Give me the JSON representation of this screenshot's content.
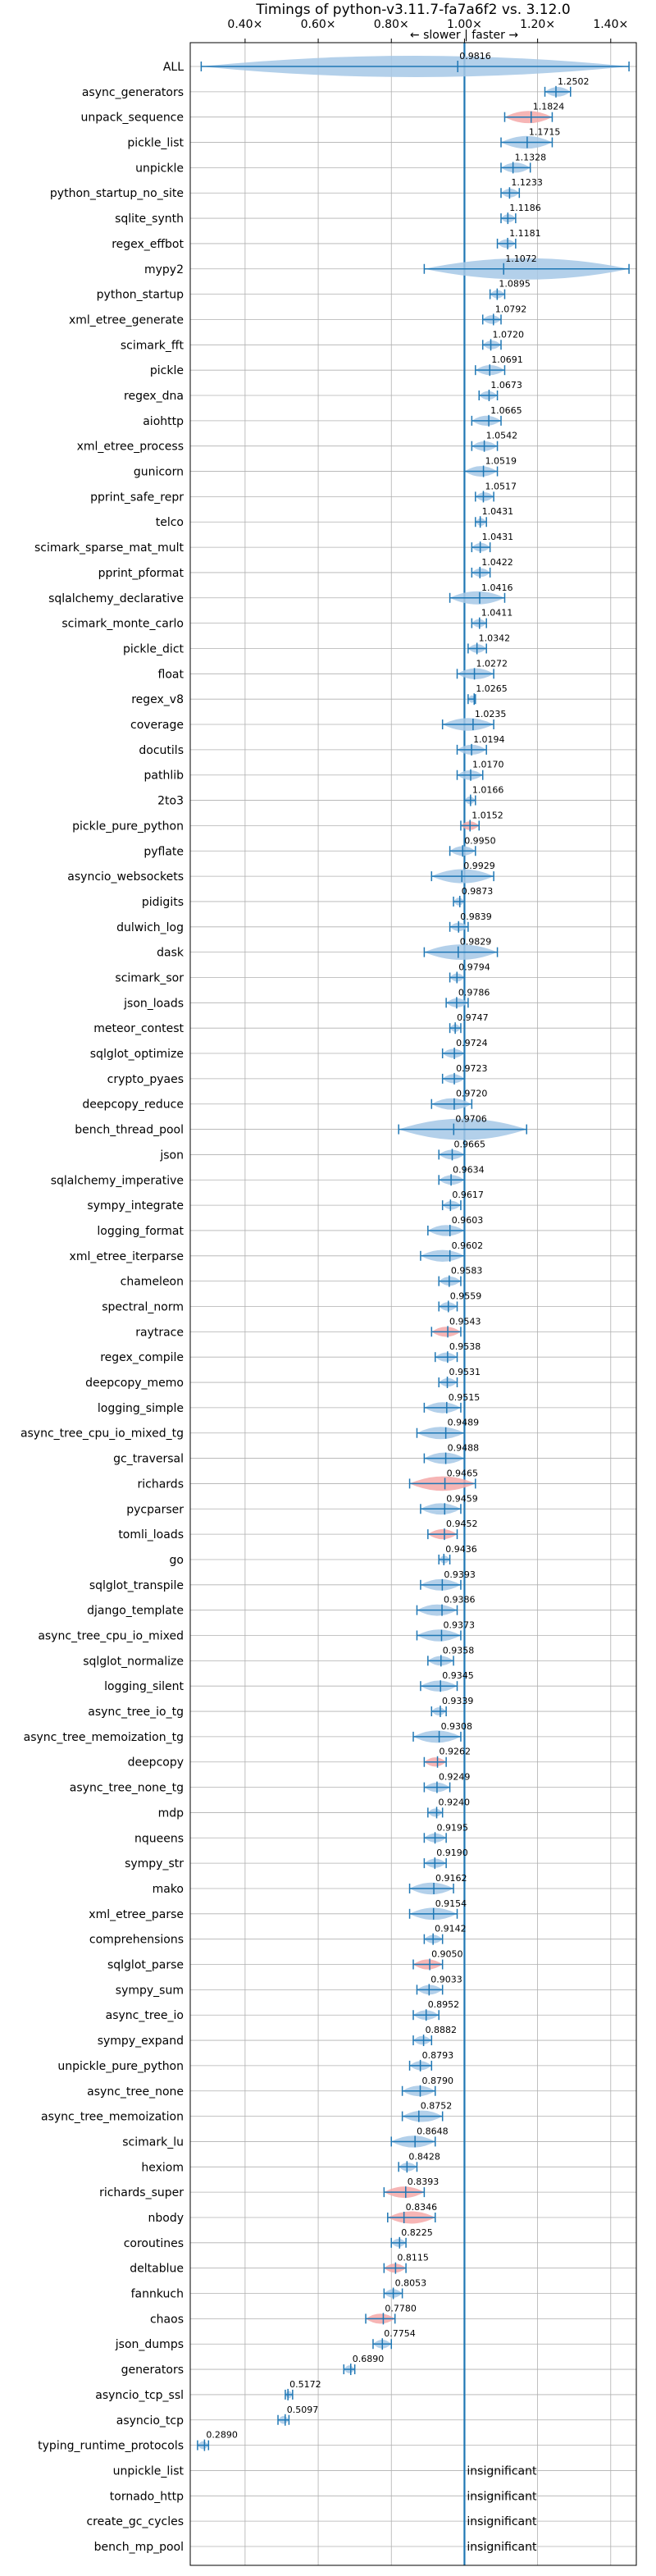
{
  "chart_data": {
    "type": "violin",
    "title": "Timings of python-v3.11.7-fa7a6f2 vs. 3.12.0",
    "subtitle": "← slower | faster →",
    "xlim": [
      0.25,
      1.47
    ],
    "x_ticks": [
      0.4,
      0.6,
      0.8,
      1.0,
      1.2,
      1.4
    ],
    "x_tick_labels": [
      "0.40×",
      "0.60×",
      "0.80×",
      "1.00×",
      "1.20×",
      "1.40×"
    ],
    "grid": true,
    "reference_line": 1.0,
    "colors": {
      "faster": "#a6c8e6",
      "slower": "#f4a8a8",
      "line": "#1f77b4"
    },
    "benchmarks": [
      {
        "name": "ALL",
        "value": 0.9816,
        "label": "0.9816",
        "min": 0.28,
        "max": 1.45
      },
      {
        "name": "async_generators",
        "value": 1.2502,
        "label": "1.2502",
        "min": 1.22,
        "max": 1.29
      },
      {
        "name": "unpack_sequence",
        "value": 1.1824,
        "label": "1.1824",
        "min": 1.11,
        "max": 1.24,
        "slower": true
      },
      {
        "name": "pickle_list",
        "value": 1.1715,
        "label": "1.1715",
        "min": 1.1,
        "max": 1.24
      },
      {
        "name": "unpickle",
        "value": 1.1328,
        "label": "1.1328",
        "min": 1.1,
        "max": 1.18
      },
      {
        "name": "python_startup_no_site",
        "value": 1.1233,
        "label": "1.1233",
        "min": 1.1,
        "max": 1.15
      },
      {
        "name": "sqlite_synth",
        "value": 1.1186,
        "label": "1.1186",
        "min": 1.1,
        "max": 1.14
      },
      {
        "name": "regex_effbot",
        "value": 1.1181,
        "label": "1.1181",
        "min": 1.09,
        "max": 1.14
      },
      {
        "name": "mypy2",
        "value": 1.1072,
        "label": "1.1072",
        "min": 0.89,
        "max": 1.45
      },
      {
        "name": "python_startup",
        "value": 1.0895,
        "label": "1.0895",
        "min": 1.07,
        "max": 1.11
      },
      {
        "name": "xml_etree_generate",
        "value": 1.0792,
        "label": "1.0792",
        "min": 1.05,
        "max": 1.1
      },
      {
        "name": "scimark_fft",
        "value": 1.072,
        "label": "1.0720",
        "min": 1.05,
        "max": 1.1
      },
      {
        "name": "pickle",
        "value": 1.0691,
        "label": "1.0691",
        "min": 1.03,
        "max": 1.11
      },
      {
        "name": "regex_dna",
        "value": 1.0673,
        "label": "1.0673",
        "min": 1.04,
        "max": 1.09
      },
      {
        "name": "aiohttp",
        "value": 1.0665,
        "label": "1.0665",
        "min": 1.02,
        "max": 1.1
      },
      {
        "name": "xml_etree_process",
        "value": 1.0542,
        "label": "1.0542",
        "min": 1.02,
        "max": 1.09
      },
      {
        "name": "gunicorn",
        "value": 1.0519,
        "label": "1.0519",
        "min": 1.0,
        "max": 1.09
      },
      {
        "name": "pprint_safe_repr",
        "value": 1.0517,
        "label": "1.0517",
        "min": 1.03,
        "max": 1.08
      },
      {
        "name": "telco",
        "value": 1.0431,
        "label": "1.0431",
        "min": 1.03,
        "max": 1.06
      },
      {
        "name": "scimark_sparse_mat_mult",
        "value": 1.0431,
        "label": "1.0431",
        "min": 1.02,
        "max": 1.07
      },
      {
        "name": "pprint_pformat",
        "value": 1.0422,
        "label": "1.0422",
        "min": 1.02,
        "max": 1.07
      },
      {
        "name": "sqlalchemy_declarative",
        "value": 1.0416,
        "label": "1.0416",
        "min": 0.96,
        "max": 1.11
      },
      {
        "name": "scimark_monte_carlo",
        "value": 1.0411,
        "label": "1.0411",
        "min": 1.02,
        "max": 1.06
      },
      {
        "name": "pickle_dict",
        "value": 1.0342,
        "label": "1.0342",
        "min": 1.01,
        "max": 1.06
      },
      {
        "name": "float",
        "value": 1.0272,
        "label": "1.0272",
        "min": 0.98,
        "max": 1.08
      },
      {
        "name": "regex_v8",
        "value": 1.0265,
        "label": "1.0265",
        "min": 1.01,
        "max": 1.03
      },
      {
        "name": "coverage",
        "value": 1.0235,
        "label": "1.0235",
        "min": 0.94,
        "max": 1.08
      },
      {
        "name": "docutils",
        "value": 1.0194,
        "label": "1.0194",
        "min": 0.98,
        "max": 1.06
      },
      {
        "name": "pathlib",
        "value": 1.017,
        "label": "1.0170",
        "min": 0.98,
        "max": 1.05
      },
      {
        "name": "2to3",
        "value": 1.0166,
        "label": "1.0166",
        "min": 1.0,
        "max": 1.03
      },
      {
        "name": "pickle_pure_python",
        "value": 1.0152,
        "label": "1.0152",
        "min": 0.99,
        "max": 1.04,
        "slower": true
      },
      {
        "name": "pyflate",
        "value": 0.995,
        "label": "0.9950",
        "min": 0.96,
        "max": 1.03
      },
      {
        "name": "asyncio_websockets",
        "value": 0.9929,
        "label": "0.9929",
        "min": 0.91,
        "max": 1.08
      },
      {
        "name": "pidigits",
        "value": 0.9873,
        "label": "0.9873",
        "min": 0.97,
        "max": 1.0
      },
      {
        "name": "dulwich_log",
        "value": 0.9839,
        "label": "0.9839",
        "min": 0.96,
        "max": 1.01
      },
      {
        "name": "dask",
        "value": 0.9829,
        "label": "0.9829",
        "min": 0.89,
        "max": 1.09
      },
      {
        "name": "scimark_sor",
        "value": 0.9794,
        "label": "0.9794",
        "min": 0.96,
        "max": 1.0
      },
      {
        "name": "json_loads",
        "value": 0.9786,
        "label": "0.9786",
        "min": 0.95,
        "max": 1.01
      },
      {
        "name": "meteor_contest",
        "value": 0.9747,
        "label": "0.9747",
        "min": 0.96,
        "max": 0.99
      },
      {
        "name": "sqlglot_optimize",
        "value": 0.9724,
        "label": "0.9724",
        "min": 0.94,
        "max": 1.0
      },
      {
        "name": "crypto_pyaes",
        "value": 0.9723,
        "label": "0.9723",
        "min": 0.94,
        "max": 1.0
      },
      {
        "name": "deepcopy_reduce",
        "value": 0.972,
        "label": "0.9720",
        "min": 0.91,
        "max": 1.02
      },
      {
        "name": "bench_thread_pool",
        "value": 0.9706,
        "label": "0.9706",
        "min": 0.82,
        "max": 1.17
      },
      {
        "name": "json",
        "value": 0.9665,
        "label": "0.9665",
        "min": 0.93,
        "max": 1.0
      },
      {
        "name": "sqlalchemy_imperative",
        "value": 0.9634,
        "label": "0.9634",
        "min": 0.93,
        "max": 1.0
      },
      {
        "name": "sympy_integrate",
        "value": 0.9617,
        "label": "0.9617",
        "min": 0.94,
        "max": 0.99
      },
      {
        "name": "logging_format",
        "value": 0.9603,
        "label": "0.9603",
        "min": 0.9,
        "max": 1.0
      },
      {
        "name": "xml_etree_iterparse",
        "value": 0.9602,
        "label": "0.9602",
        "min": 0.88,
        "max": 1.0
      },
      {
        "name": "chameleon",
        "value": 0.9583,
        "label": "0.9583",
        "min": 0.93,
        "max": 0.99
      },
      {
        "name": "spectral_norm",
        "value": 0.9559,
        "label": "0.9559",
        "min": 0.93,
        "max": 0.98
      },
      {
        "name": "raytrace",
        "value": 0.9543,
        "label": "0.9543",
        "min": 0.91,
        "max": 0.99,
        "slower": true
      },
      {
        "name": "regex_compile",
        "value": 0.9538,
        "label": "0.9538",
        "min": 0.92,
        "max": 0.98
      },
      {
        "name": "deepcopy_memo",
        "value": 0.9531,
        "label": "0.9531",
        "min": 0.93,
        "max": 0.98
      },
      {
        "name": "logging_simple",
        "value": 0.9515,
        "label": "0.9515",
        "min": 0.89,
        "max": 0.99
      },
      {
        "name": "async_tree_cpu_io_mixed_tg",
        "value": 0.9489,
        "label": "0.9489",
        "min": 0.87,
        "max": 1.0
      },
      {
        "name": "gc_traversal",
        "value": 0.9488,
        "label": "0.9488",
        "min": 0.89,
        "max": 1.0
      },
      {
        "name": "richards",
        "value": 0.9465,
        "label": "0.9465",
        "min": 0.85,
        "max": 1.03,
        "slower": true
      },
      {
        "name": "pycparser",
        "value": 0.9459,
        "label": "0.9459",
        "min": 0.88,
        "max": 0.99
      },
      {
        "name": "tomli_loads",
        "value": 0.9452,
        "label": "0.9452",
        "min": 0.9,
        "max": 0.98,
        "slower": true
      },
      {
        "name": "go",
        "value": 0.9436,
        "label": "0.9436",
        "min": 0.93,
        "max": 0.96
      },
      {
        "name": "sqlglot_transpile",
        "value": 0.9393,
        "label": "0.9393",
        "min": 0.88,
        "max": 0.99
      },
      {
        "name": "django_template",
        "value": 0.9386,
        "label": "0.9386",
        "min": 0.87,
        "max": 0.98
      },
      {
        "name": "async_tree_cpu_io_mixed",
        "value": 0.9373,
        "label": "0.9373",
        "min": 0.87,
        "max": 0.99
      },
      {
        "name": "sqlglot_normalize",
        "value": 0.9358,
        "label": "0.9358",
        "min": 0.9,
        "max": 0.97
      },
      {
        "name": "logging_silent",
        "value": 0.9345,
        "label": "0.9345",
        "min": 0.88,
        "max": 0.98
      },
      {
        "name": "async_tree_io_tg",
        "value": 0.9339,
        "label": "0.9339",
        "min": 0.91,
        "max": 0.95
      },
      {
        "name": "async_tree_memoization_tg",
        "value": 0.9308,
        "label": "0.9308",
        "min": 0.86,
        "max": 0.99
      },
      {
        "name": "deepcopy",
        "value": 0.9262,
        "label": "0.9262",
        "min": 0.89,
        "max": 0.95,
        "slower": true
      },
      {
        "name": "async_tree_none_tg",
        "value": 0.9249,
        "label": "0.9249",
        "min": 0.89,
        "max": 0.96
      },
      {
        "name": "mdp",
        "value": 0.924,
        "label": "0.9240",
        "min": 0.9,
        "max": 0.94
      },
      {
        "name": "nqueens",
        "value": 0.9195,
        "label": "0.9195",
        "min": 0.89,
        "max": 0.95
      },
      {
        "name": "sympy_str",
        "value": 0.919,
        "label": "0.9190",
        "min": 0.89,
        "max": 0.95
      },
      {
        "name": "mako",
        "value": 0.9162,
        "label": "0.9162",
        "min": 0.85,
        "max": 0.97
      },
      {
        "name": "xml_etree_parse",
        "value": 0.9154,
        "label": "0.9154",
        "min": 0.85,
        "max": 0.98
      },
      {
        "name": "comprehensions",
        "value": 0.9142,
        "label": "0.9142",
        "min": 0.89,
        "max": 0.94
      },
      {
        "name": "sqlglot_parse",
        "value": 0.905,
        "label": "0.9050",
        "min": 0.86,
        "max": 0.94,
        "slower": true
      },
      {
        "name": "sympy_sum",
        "value": 0.9033,
        "label": "0.9033",
        "min": 0.87,
        "max": 0.94
      },
      {
        "name": "async_tree_io",
        "value": 0.8952,
        "label": "0.8952",
        "min": 0.86,
        "max": 0.93
      },
      {
        "name": "sympy_expand",
        "value": 0.8882,
        "label": "0.8882",
        "min": 0.86,
        "max": 0.91
      },
      {
        "name": "unpickle_pure_python",
        "value": 0.8793,
        "label": "0.8793",
        "min": 0.85,
        "max": 0.91
      },
      {
        "name": "async_tree_none",
        "value": 0.879,
        "label": "0.8790",
        "min": 0.83,
        "max": 0.92
      },
      {
        "name": "async_tree_memoization",
        "value": 0.8752,
        "label": "0.8752",
        "min": 0.83,
        "max": 0.94
      },
      {
        "name": "scimark_lu",
        "value": 0.8648,
        "label": "0.8648",
        "min": 0.8,
        "max": 0.92
      },
      {
        "name": "hexiom",
        "value": 0.8428,
        "label": "0.8428",
        "min": 0.82,
        "max": 0.87
      },
      {
        "name": "richards_super",
        "value": 0.8393,
        "label": "0.8393",
        "min": 0.78,
        "max": 0.89,
        "slower": true
      },
      {
        "name": "nbody",
        "value": 0.8346,
        "label": "0.8346",
        "min": 0.79,
        "max": 0.92,
        "slower": true
      },
      {
        "name": "coroutines",
        "value": 0.8225,
        "label": "0.8225",
        "min": 0.8,
        "max": 0.84
      },
      {
        "name": "deltablue",
        "value": 0.8115,
        "label": "0.8115",
        "min": 0.78,
        "max": 0.84,
        "slower": true
      },
      {
        "name": "fannkuch",
        "value": 0.8053,
        "label": "0.8053",
        "min": 0.78,
        "max": 0.83
      },
      {
        "name": "chaos",
        "value": 0.778,
        "label": "0.7780",
        "min": 0.73,
        "max": 0.81,
        "slower": true
      },
      {
        "name": "json_dumps",
        "value": 0.7754,
        "label": "0.7754",
        "min": 0.75,
        "max": 0.8
      },
      {
        "name": "generators",
        "value": 0.689,
        "label": "0.6890",
        "min": 0.67,
        "max": 0.7
      },
      {
        "name": "asyncio_tcp_ssl",
        "value": 0.5172,
        "label": "0.5172",
        "min": 0.51,
        "max": 0.53
      },
      {
        "name": "asyncio_tcp",
        "value": 0.5097,
        "label": "0.5097",
        "min": 0.49,
        "max": 0.52
      },
      {
        "name": "typing_runtime_protocols",
        "value": 0.289,
        "label": "0.2890",
        "min": 0.27,
        "max": 0.3
      },
      {
        "name": "unpickle_list",
        "label": "insignificant"
      },
      {
        "name": "tornado_http",
        "label": "insignificant"
      },
      {
        "name": "create_gc_cycles",
        "label": "insignificant"
      },
      {
        "name": "bench_mp_pool",
        "label": "insignificant"
      }
    ]
  }
}
